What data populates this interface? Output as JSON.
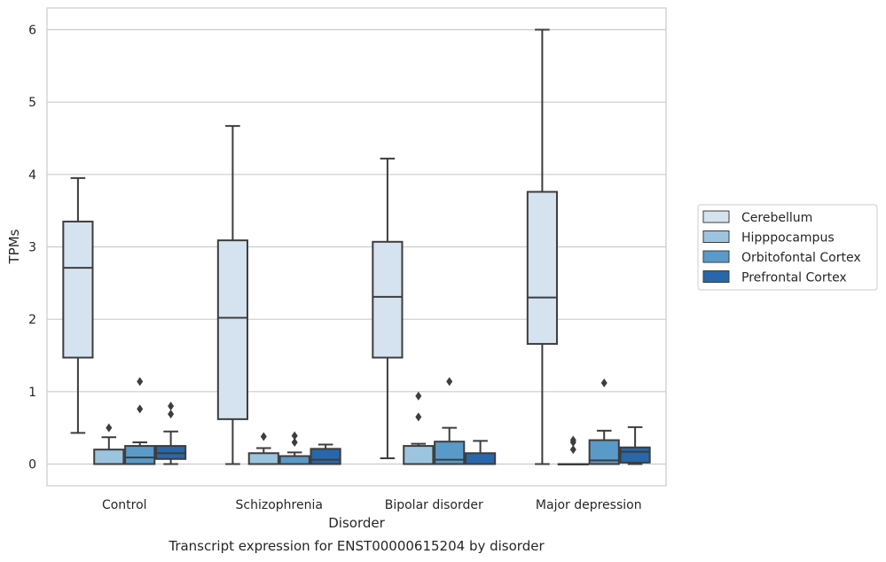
{
  "chart_data": {
    "type": "box",
    "title": "Transcript expression for ENST00000615204 by disorder",
    "xlabel": "Disorder",
    "ylabel": "TPMs",
    "ylim": [
      -0.3,
      6.3
    ],
    "yticks": [
      0,
      1,
      2,
      3,
      4,
      5,
      6
    ],
    "grid": true,
    "legend_position": "right",
    "categories": [
      "Control",
      "Schizophrenia",
      "Bipolar disorder",
      "Major depression"
    ],
    "series": [
      {
        "name": "Cerebellum",
        "color": "#d5e3f1",
        "boxes": [
          {
            "whisker_low": 0.43,
            "q1": 1.47,
            "median": 2.71,
            "q3": 3.35,
            "whisker_high": 3.95,
            "outliers": []
          },
          {
            "whisker_low": 0.0,
            "q1": 0.62,
            "median": 2.02,
            "q3": 3.09,
            "whisker_high": 4.67,
            "outliers": []
          },
          {
            "whisker_low": 0.08,
            "q1": 1.47,
            "median": 2.31,
            "q3": 3.07,
            "whisker_high": 4.22,
            "outliers": []
          },
          {
            "whisker_low": 0.0,
            "q1": 1.66,
            "median": 2.3,
            "q3": 3.76,
            "whisker_high": 6.0,
            "outliers": []
          }
        ]
      },
      {
        "name": "Hipppocampus",
        "color": "#9cc4df",
        "boxes": [
          {
            "whisker_low": 0.0,
            "q1": 0.0,
            "median": 0.0,
            "q3": 0.2,
            "whisker_high": 0.37,
            "outliers": [
              0.5
            ]
          },
          {
            "whisker_low": 0.0,
            "q1": 0.0,
            "median": 0.0,
            "q3": 0.15,
            "whisker_high": 0.22,
            "outliers": [
              0.38
            ]
          },
          {
            "whisker_low": 0.0,
            "q1": 0.0,
            "median": 0.0,
            "q3": 0.25,
            "whisker_high": 0.28,
            "outliers": [
              0.65,
              0.94
            ]
          },
          {
            "whisker_low": 0.0,
            "q1": 0.0,
            "median": 0.0,
            "q3": 0.0,
            "whisker_high": 0.0,
            "outliers": [
              0.2,
              0.3,
              0.33
            ]
          }
        ]
      },
      {
        "name": "Orbitofontal Cortex",
        "color": "#5a9ac9",
        "boxes": [
          {
            "whisker_low": 0.0,
            "q1": 0.0,
            "median": 0.09,
            "q3": 0.25,
            "whisker_high": 0.3,
            "outliers": [
              0.76,
              1.14
            ]
          },
          {
            "whisker_low": 0.0,
            "q1": 0.0,
            "median": 0.0,
            "q3": 0.11,
            "whisker_high": 0.16,
            "outliers": [
              0.3,
              0.39
            ]
          },
          {
            "whisker_low": 0.0,
            "q1": 0.0,
            "median": 0.06,
            "q3": 0.31,
            "whisker_high": 0.5,
            "outliers": [
              1.14
            ]
          },
          {
            "whisker_low": 0.0,
            "q1": 0.0,
            "median": 0.05,
            "q3": 0.33,
            "whisker_high": 0.46,
            "outliers": [
              1.12
            ]
          }
        ]
      },
      {
        "name": "Prefrontal Cortex",
        "color": "#2867a9",
        "boxes": [
          {
            "whisker_low": 0.0,
            "q1": 0.07,
            "median": 0.15,
            "q3": 0.25,
            "whisker_high": 0.45,
            "outliers": [
              0.69,
              0.8
            ]
          },
          {
            "whisker_low": 0.0,
            "q1": 0.0,
            "median": 0.06,
            "q3": 0.21,
            "whisker_high": 0.27,
            "outliers": []
          },
          {
            "whisker_low": 0.0,
            "q1": 0.0,
            "median": 0.0,
            "q3": 0.15,
            "whisker_high": 0.32,
            "outliers": []
          },
          {
            "whisker_low": 0.0,
            "q1": 0.02,
            "median": 0.17,
            "q3": 0.23,
            "whisker_high": 0.51,
            "outliers": []
          }
        ]
      }
    ]
  }
}
